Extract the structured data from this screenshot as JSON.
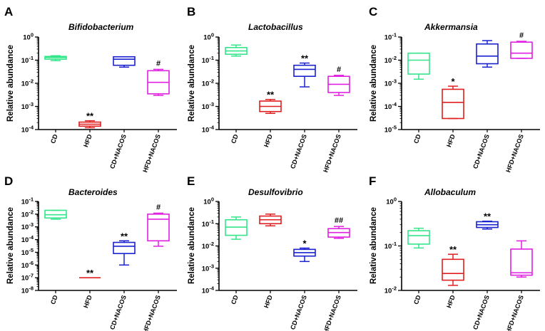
{
  "figure": {
    "ylabel": "Relative abundance",
    "categories": [
      "CD",
      "HFD",
      "CD+NACOS",
      "HFD+NACOS"
    ],
    "colors": [
      "#33e68a",
      "#e02020",
      "#1a22d0",
      "#e020e0"
    ]
  },
  "chart_data": [
    {
      "type": "box",
      "panel": "A",
      "title": "Bifidobacterium",
      "ylabel": "Relative abundance",
      "yscale": "log",
      "ylim": [
        0.0001,
        1
      ],
      "ytick_labels": [
        {
          "base": "10",
          "exp": "0"
        },
        {
          "base": "10",
          "exp": "-1"
        },
        {
          "base": "10",
          "exp": "-2"
        },
        {
          "base": "10",
          "exp": "-3"
        },
        {
          "base": "10",
          "exp": "-4"
        }
      ],
      "categories": [
        "CD",
        "HFD",
        "CD+NACOS",
        "HFD+NACOS"
      ],
      "boxes": [
        {
          "min": 0.095,
          "q1": 0.11,
          "median": 0.13,
          "q3": 0.145,
          "max": 0.155
        },
        {
          "min": 0.00012,
          "q1": 0.00014,
          "median": 0.00017,
          "q3": 0.00021,
          "max": 0.00024
        },
        {
          "min": 0.05,
          "q1": 0.06,
          "median": 0.11,
          "q3": 0.14,
          "max": 0.14
        },
        {
          "min": 0.003,
          "q1": 0.0035,
          "median": 0.011,
          "q3": 0.035,
          "max": 0.04
        }
      ],
      "significance": [
        "",
        "**",
        "",
        "#"
      ]
    },
    {
      "type": "box",
      "panel": "B",
      "title": "Lactobacillus",
      "ylabel": "Relative abundance",
      "yscale": "log",
      "ylim": [
        0.0001,
        1
      ],
      "ytick_labels": [
        {
          "base": "10",
          "exp": "0"
        },
        {
          "base": "10",
          "exp": "-1"
        },
        {
          "base": "10",
          "exp": "-2"
        },
        {
          "base": "10",
          "exp": "-3"
        },
        {
          "base": "10",
          "exp": "-4"
        }
      ],
      "categories": [
        "CD",
        "HFD",
        "CD+NACOS",
        "HFD+NACOS"
      ],
      "boxes": [
        {
          "min": 0.15,
          "q1": 0.18,
          "median": 0.25,
          "q3": 0.35,
          "max": 0.45
        },
        {
          "min": 0.0005,
          "q1": 0.0006,
          "median": 0.001,
          "q3": 0.0017,
          "max": 0.002
        },
        {
          "min": 0.007,
          "q1": 0.02,
          "median": 0.04,
          "q3": 0.06,
          "max": 0.075
        },
        {
          "min": 0.003,
          "q1": 0.004,
          "median": 0.009,
          "q3": 0.02,
          "max": 0.022
        }
      ],
      "significance": [
        "",
        "**",
        "**",
        "#"
      ]
    },
    {
      "type": "box",
      "panel": "C",
      "title": "Akkermansia",
      "ylabel": "Relative abundance",
      "yscale": "log",
      "ylim": [
        1e-05,
        0.1
      ],
      "ytick_labels": [
        {
          "base": "10",
          "exp": "-1"
        },
        {
          "base": "10",
          "exp": "-2"
        },
        {
          "base": "10",
          "exp": "-3"
        },
        {
          "base": "10",
          "exp": "-4"
        },
        {
          "base": "10",
          "exp": "-5"
        }
      ],
      "categories": [
        "CD",
        "HFD",
        "CD+NACOS",
        "HFD+NACOS"
      ],
      "boxes": [
        {
          "min": 0.0015,
          "q1": 0.0025,
          "median": 0.01,
          "q3": 0.02,
          "max": 0.02
        },
        {
          "min": 3e-05,
          "q1": 3e-05,
          "median": 0.00015,
          "q3": 0.00055,
          "max": 0.00075
        },
        {
          "min": 0.005,
          "q1": 0.007,
          "median": 0.015,
          "q3": 0.05,
          "max": 0.07
        },
        {
          "min": 0.012,
          "q1": 0.012,
          "median": 0.02,
          "q3": 0.06,
          "max": 0.065
        }
      ],
      "significance": [
        "",
        "*",
        "",
        "#"
      ]
    },
    {
      "type": "box",
      "panel": "D",
      "title": "Bacteroides",
      "ylabel": "Relative abundance",
      "yscale": "log",
      "ylim": [
        1e-08,
        0.1
      ],
      "ytick_labels": [
        {
          "base": "10",
          "exp": "-1"
        },
        {
          "base": "10",
          "exp": "-2"
        },
        {
          "base": "10",
          "exp": "-3"
        },
        {
          "base": "10",
          "exp": "-4"
        },
        {
          "base": "10",
          "exp": "-5"
        },
        {
          "base": "10",
          "exp": "-6"
        },
        {
          "base": "10",
          "exp": "-7"
        },
        {
          "base": "10",
          "exp": "-8"
        }
      ],
      "categories": [
        "CD",
        "HFD",
        "CD+NACOS",
        "HFD+NACOS"
      ],
      "boxes": [
        {
          "min": 0.004,
          "q1": 0.005,
          "median": 0.009,
          "q3": 0.02,
          "max": 0.02
        },
        {
          "min": 1e-07,
          "q1": 1e-07,
          "median": 1e-07,
          "q3": 1e-07,
          "max": 1e-07
        },
        {
          "min": 1e-06,
          "q1": 8e-06,
          "median": 3e-05,
          "q3": 6e-05,
          "max": 8e-05
        },
        {
          "min": 3e-05,
          "q1": 8e-05,
          "median": 0.004,
          "q3": 0.01,
          "max": 0.012
        }
      ],
      "significance": [
        "",
        "**",
        "**",
        "#"
      ]
    },
    {
      "type": "box",
      "panel": "E",
      "title": "Desulfovibrio",
      "ylabel": "Relative abundance",
      "yscale": "log",
      "ylim": [
        0.0001,
        1
      ],
      "ytick_labels": [
        {
          "base": "10",
          "exp": "0"
        },
        {
          "base": "10",
          "exp": "-1"
        },
        {
          "base": "10",
          "exp": "-2"
        },
        {
          "base": "10",
          "exp": "-3"
        },
        {
          "base": "10",
          "exp": "-4"
        }
      ],
      "categories": [
        "CD",
        "HFD",
        "CD+NACOS",
        "HFD+NACOS"
      ],
      "boxes": [
        {
          "min": 0.02,
          "q1": 0.03,
          "median": 0.07,
          "q3": 0.15,
          "max": 0.2
        },
        {
          "min": 0.08,
          "q1": 0.1,
          "median": 0.15,
          "q3": 0.22,
          "max": 0.27
        },
        {
          "min": 0.002,
          "q1": 0.0035,
          "median": 0.005,
          "q3": 0.007,
          "max": 0.008
        },
        {
          "min": 0.022,
          "q1": 0.025,
          "median": 0.04,
          "q3": 0.06,
          "max": 0.075
        }
      ],
      "significance": [
        "",
        "",
        "*",
        "##"
      ]
    },
    {
      "type": "box",
      "panel": "F",
      "title": "Allobaculum",
      "ylabel": "Relative abundance",
      "yscale": "log",
      "ylim": [
        0.01,
        1
      ],
      "ytick_labels": [
        {
          "base": "10",
          "exp": "0"
        },
        {
          "base": "10",
          "exp": "-1"
        },
        {
          "base": "10",
          "exp": "-2"
        }
      ],
      "categories": [
        "CD",
        "HFD",
        "CD+NACOS",
        "HFD+NACOS"
      ],
      "boxes": [
        {
          "min": 0.09,
          "q1": 0.11,
          "median": 0.17,
          "q3": 0.22,
          "max": 0.25
        },
        {
          "min": 0.013,
          "q1": 0.017,
          "median": 0.024,
          "q3": 0.05,
          "max": 0.065
        },
        {
          "min": 0.24,
          "q1": 0.26,
          "median": 0.3,
          "q3": 0.35,
          "max": 0.36
        },
        {
          "min": 0.02,
          "q1": 0.022,
          "median": 0.025,
          "q3": 0.085,
          "max": 0.13
        }
      ],
      "significance": [
        "",
        "**",
        "**",
        ""
      ]
    }
  ]
}
